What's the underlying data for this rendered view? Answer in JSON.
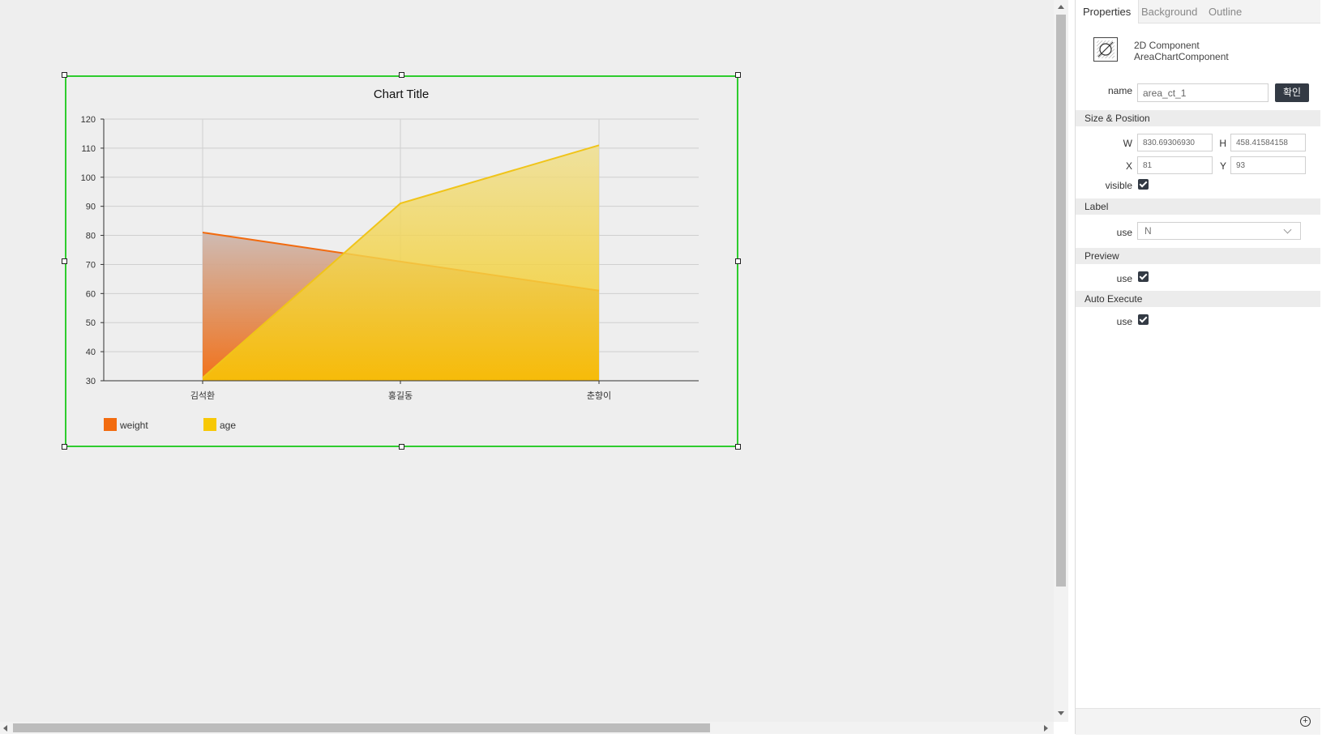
{
  "canvas": {
    "component": {
      "chart_data": {
        "type": "area",
        "title": "Chart Title",
        "categories": [
          "김석환",
          "홍길동",
          "춘향이"
        ],
        "ylim": [
          30,
          120
        ],
        "yticks": [
          "30",
          "40",
          "50",
          "60",
          "70",
          "80",
          "90",
          "100",
          "110",
          "120"
        ],
        "grid": true,
        "legend_position": "bottom-left",
        "series": [
          {
            "name": "weight",
            "values": [
              81,
              71,
              61
            ],
            "color": "#f26b0f"
          },
          {
            "name": "age",
            "values": [
              31,
              91,
              111
            ],
            "color": "#f7c806"
          }
        ]
      }
    }
  },
  "panel": {
    "tabs": [
      "Properties",
      "Background",
      "Outline"
    ],
    "component_type": "2D Component",
    "component_class": "AreaChartComponent",
    "name_label": "name",
    "name_value": "area_ct_1",
    "confirm_label": "확인",
    "sections": {
      "size_position": "Size & Position",
      "label": "Label",
      "preview": "Preview",
      "auto_execute": "Auto Execute"
    },
    "w_label": "W",
    "w_value": "830.69306930",
    "h_label": "H",
    "h_value": "458.41584158",
    "x_label": "X",
    "x_value": "81",
    "y_label": "Y",
    "y_value": "93",
    "visible_label": "visible",
    "visible_checked": true,
    "label_use_label": "use",
    "label_use_value": "N",
    "preview_use_label": "use",
    "preview_use_checked": true,
    "auto_use_label": "use",
    "auto_use_checked": true
  }
}
